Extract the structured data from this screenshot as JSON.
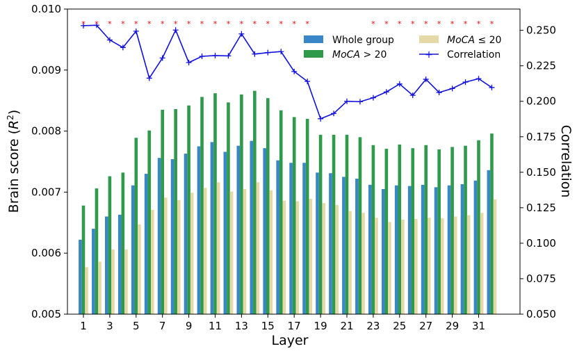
{
  "chart_data": {
    "type": "bar",
    "xlabel": "Layer",
    "ylabel": "Brain score (R²)",
    "ylabel_right": "Correlation",
    "ylim": [
      0.005,
      0.01
    ],
    "ylim_right": [
      0.05,
      0.265
    ],
    "categories": [
      1,
      2,
      3,
      4,
      5,
      6,
      7,
      8,
      9,
      10,
      11,
      12,
      13,
      14,
      15,
      16,
      17,
      18,
      19,
      20,
      21,
      22,
      23,
      24,
      25,
      26,
      27,
      28,
      29,
      30,
      31,
      32
    ],
    "x_ticks": [
      "1",
      "3",
      "5",
      "7",
      "9",
      "11",
      "13",
      "15",
      "17",
      "19",
      "21",
      "23",
      "25",
      "27",
      "29",
      "31"
    ],
    "y_ticks_left": [
      "0.005",
      "0.006",
      "0.007",
      "0.008",
      "0.009",
      "0.010"
    ],
    "y_ticks_right": [
      "0.050",
      "0.075",
      "0.100",
      "0.125",
      "0.150",
      "0.175",
      "0.200",
      "0.225",
      "0.250"
    ],
    "series": [
      {
        "name": "Whole group",
        "color": "#3a87c8",
        "values": [
          0.00622,
          0.0064,
          0.0066,
          0.00663,
          0.00711,
          0.0073,
          0.00756,
          0.00754,
          0.00763,
          0.00775,
          0.00782,
          0.00766,
          0.00776,
          0.00784,
          0.00772,
          0.00752,
          0.00748,
          0.00748,
          0.00732,
          0.00731,
          0.00725,
          0.00722,
          0.00712,
          0.00705,
          0.00711,
          0.0071,
          0.00712,
          0.00708,
          0.00711,
          0.00713,
          0.00719,
          0.00736
        ]
      },
      {
        "name": "MoCA > 20",
        "color": "#2e9a4a",
        "values": [
          0.00678,
          0.00706,
          0.00726,
          0.00732,
          0.00789,
          0.00801,
          0.00835,
          0.00836,
          0.00842,
          0.00856,
          0.00862,
          0.00847,
          0.0086,
          0.00866,
          0.00854,
          0.00834,
          0.00823,
          0.0082,
          0.00794,
          0.00794,
          0.00794,
          0.0079,
          0.00777,
          0.00771,
          0.00778,
          0.00772,
          0.00777,
          0.0077,
          0.00774,
          0.00776,
          0.00785,
          0.00796
        ]
      },
      {
        "name": "MoCA ≤ 20",
        "color": "#e5d9a8",
        "values": [
          0.00577,
          0.00586,
          0.00606,
          0.00606,
          0.00647,
          0.00671,
          0.00691,
          0.00687,
          0.00699,
          0.00707,
          0.00716,
          0.00701,
          0.00705,
          0.00716,
          0.00703,
          0.00686,
          0.00685,
          0.00689,
          0.00682,
          0.00679,
          0.00669,
          0.00666,
          0.00658,
          0.00651,
          0.00655,
          0.00656,
          0.00658,
          0.00657,
          0.0066,
          0.00662,
          0.00666,
          0.00688
        ]
      },
      {
        "name": "Correlation",
        "color": "#1010e0",
        "axis": "right",
        "values": [
          0.2533,
          0.2536,
          0.2432,
          0.2379,
          0.2494,
          0.2163,
          0.2305,
          0.2502,
          0.2273,
          0.2317,
          0.2322,
          0.232,
          0.2475,
          0.2333,
          0.2343,
          0.235,
          0.221,
          0.214,
          0.1877,
          0.1914,
          0.2,
          0.1997,
          0.2025,
          0.2066,
          0.2122,
          0.2042,
          0.2155,
          0.2062,
          0.209,
          0.2135,
          0.2159,
          0.2097
        ]
      }
    ],
    "significance_markers": {
      "symbol": "*",
      "color": "#ff0000",
      "layers": [
        1,
        2,
        3,
        4,
        5,
        6,
        7,
        8,
        9,
        10,
        11,
        12,
        13,
        14,
        15,
        16,
        17,
        18,
        23,
        24,
        25,
        26,
        27,
        28,
        29,
        30,
        31,
        32
      ]
    },
    "legend_position": "top-right",
    "legend": {
      "whole_group": "Whole group",
      "moca_gt": "MoCA > 20",
      "moca_le": "MoCA ≤ 20",
      "correlation": "Correlation"
    }
  }
}
